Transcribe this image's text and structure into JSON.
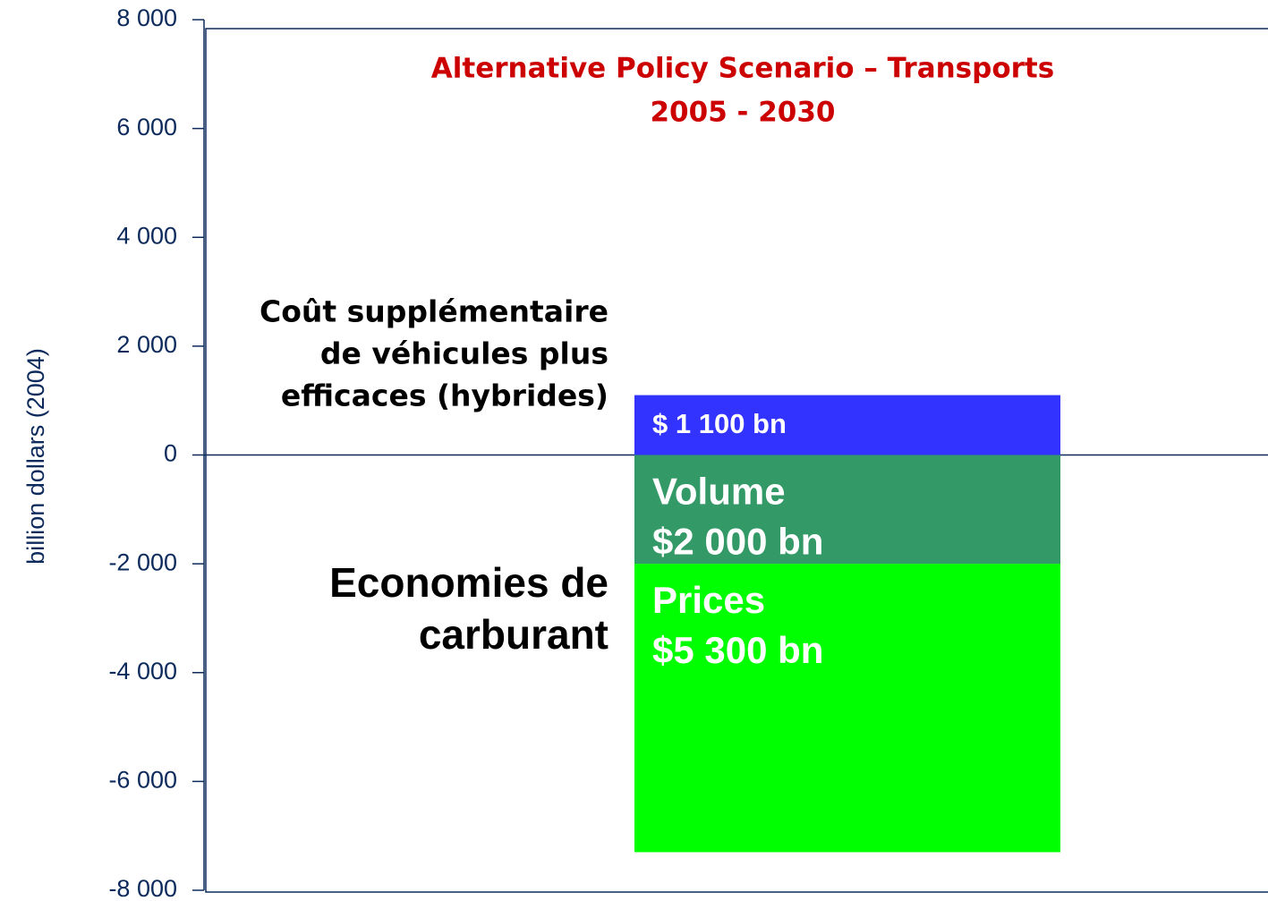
{
  "chart_data": {
    "type": "stacked_bar",
    "title": "Alternative Policy Scenario – Transports",
    "subtitle": "2005 - 2030",
    "ylabel": "billion dollars (2004)",
    "categories": [
      null
    ],
    "series": [
      {
        "color": "#3333ff",
        "values": [
          1100
        ],
        "value_labels": [
          "$ 1 100 bn"
        ]
      },
      {
        "name": "Volume",
        "color": "#339966",
        "values": [
          -2000
        ],
        "value_labels": [
          "$2 000 bn"
        ]
      },
      {
        "name": "Prices",
        "color": "#00ff00",
        "values": [
          -5300
        ],
        "value_labels": [
          "$5 300 bn"
        ]
      }
    ],
    "annotations": [
      [
        "Coût supplémentaire",
        "de véhicules plus",
        "efficaces (hybrides)"
      ],
      [
        "Economies de",
        "carburant"
      ]
    ],
    "ylim": [
      -8000,
      8000
    ],
    "yticks": [
      {
        "value": -8000,
        "label": "-8 000"
      },
      {
        "value": -6000,
        "label": "-6 000"
      },
      {
        "value": -4000,
        "label": "-4 000"
      },
      {
        "value": -2000,
        "label": "-2 000"
      },
      0,
      {
        "value": 2000,
        "label": "2 000"
      },
      {
        "value": 4000,
        "label": "4 000"
      },
      {
        "value": 6000,
        "label": "6 000"
      },
      {
        "value": 8000,
        "label": "8 000"
      }
    ]
  }
}
